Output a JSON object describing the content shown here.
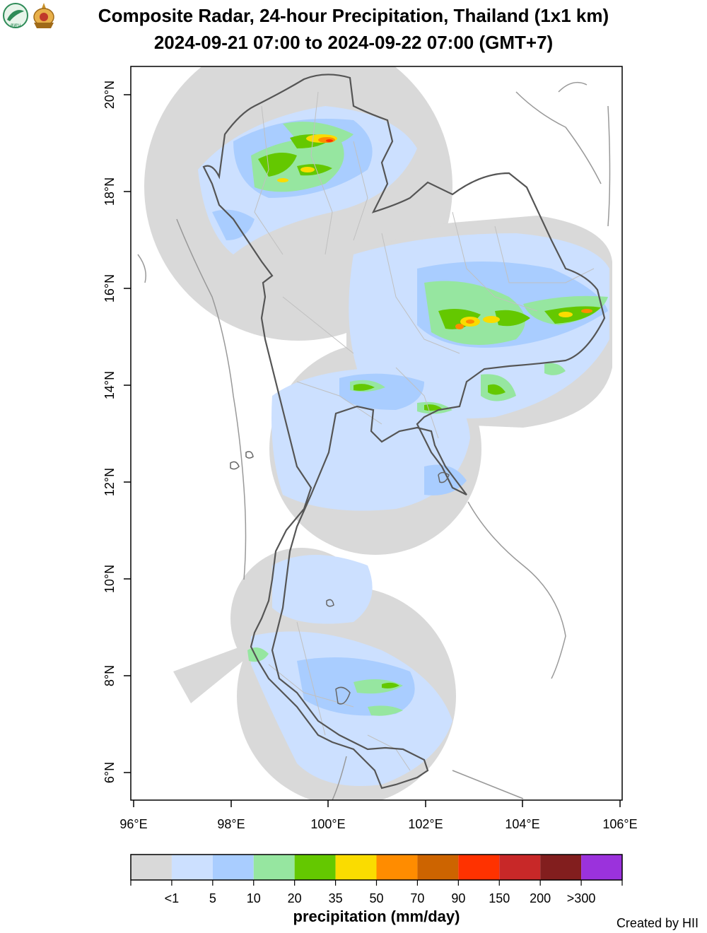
{
  "title_line1": "Composite Radar, 24-hour Precipitation, Thailand (1x1 km)",
  "title_line2": "2024-09-21 07:00 to 2024-09-22 07:00 (GMT+7)",
  "logos": [
    {
      "name": "hii-logo",
      "text": "สสน",
      "color": "#2e8b57"
    },
    {
      "name": "royal-emblem-logo",
      "color": "#c8912a"
    }
  ],
  "axes": {
    "x_ticks": [
      "96°E",
      "98°E",
      "100°E",
      "102°E",
      "104°E",
      "106°E"
    ],
    "y_ticks": [
      "6°N",
      "8°N",
      "10°N",
      "12°N",
      "14°N",
      "16°N",
      "18°N",
      "20°N"
    ]
  },
  "legend": {
    "title": "precipitation (mm/day)",
    "colors": [
      "#d9d9d9",
      "#cce0ff",
      "#a9cdff",
      "#96e6a0",
      "#64c800",
      "#fadc00",
      "#ff8c00",
      "#cd6400",
      "#ff3200",
      "#c82828",
      "#821e1e",
      "#9b32dc"
    ],
    "labels": [
      "<1",
      "5",
      "10",
      "20",
      "35",
      "50",
      "70",
      "90",
      "150",
      "200",
      ">300"
    ]
  },
  "credit": "Created by HII"
}
